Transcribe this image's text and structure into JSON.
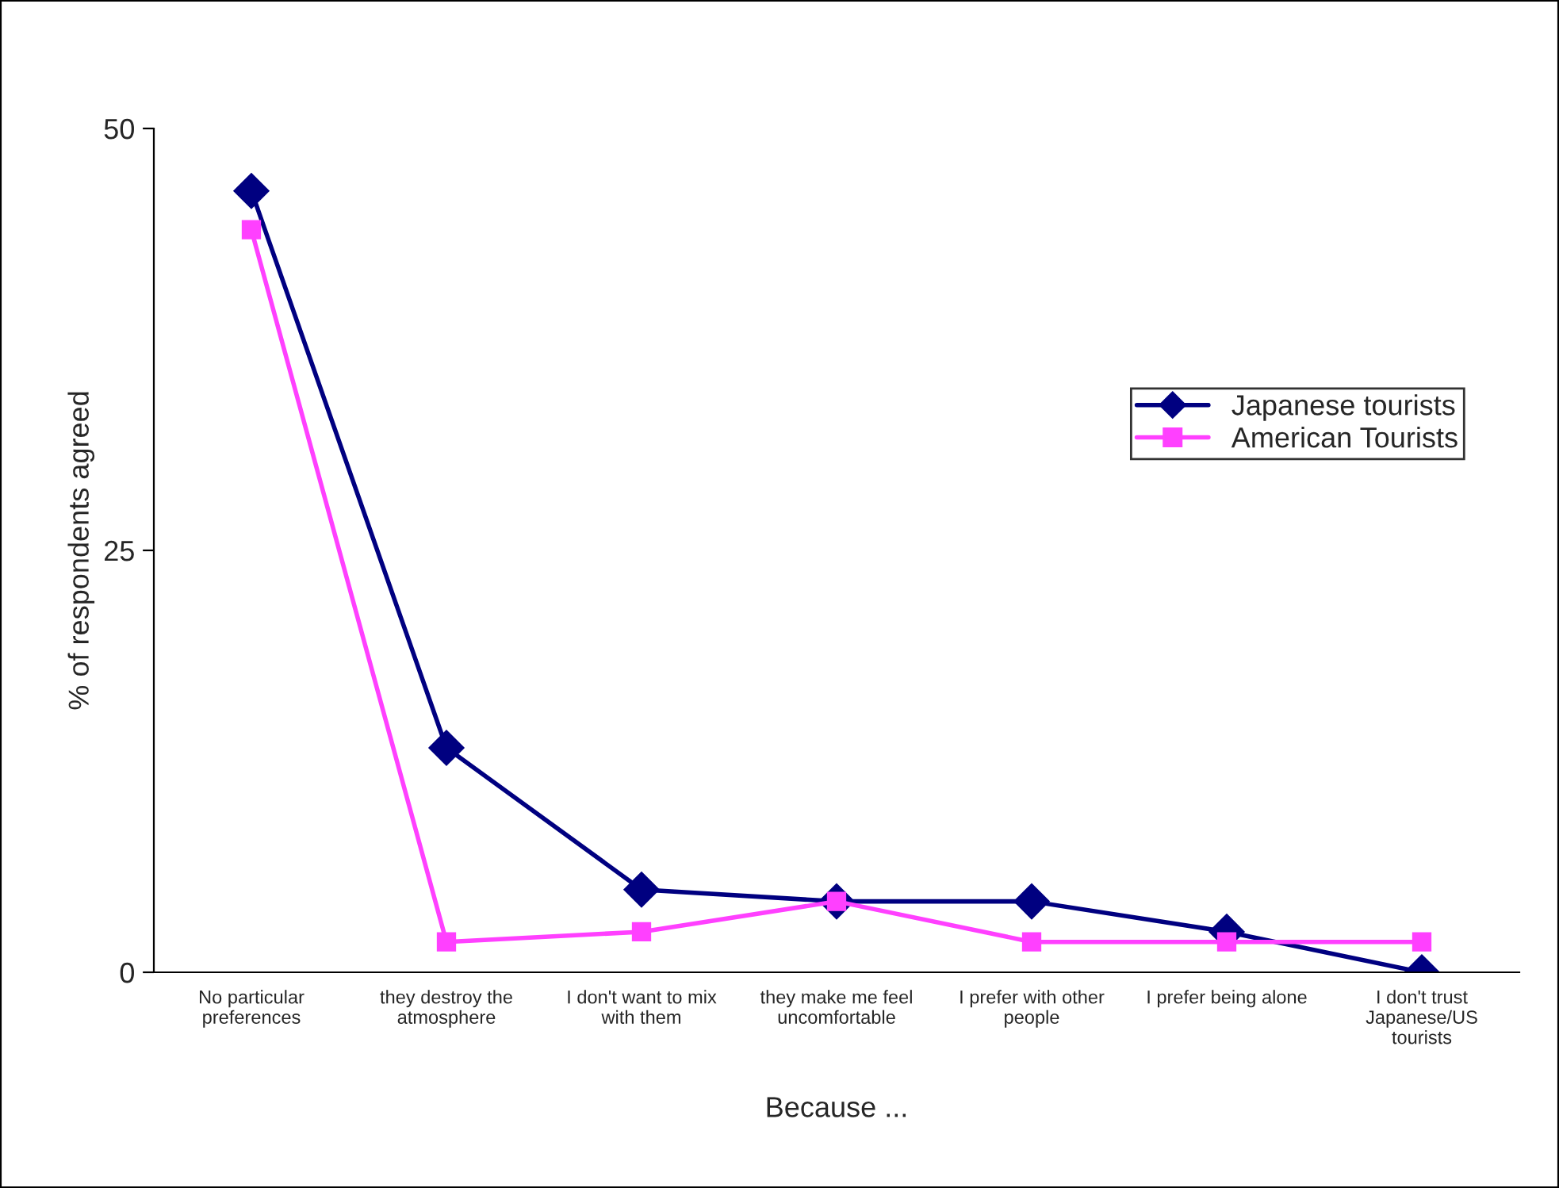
{
  "chart_data": {
    "type": "line",
    "xlabel": "Because ...",
    "ylabel": "% of respondents agreed",
    "categories": [
      "No particular\npreferences",
      "they destroy the\natmosphere",
      "I don't want to mix\nwith them",
      "they make me feel\nuncomfortable",
      "I prefer with other\npeople",
      "I prefer being alone",
      "I don't trust\nJapanese/US\ntourists"
    ],
    "series": [
      {
        "name": "Japanese tourists",
        "color": "#000080",
        "marker": "diamond",
        "values": [
          46.3,
          13.3,
          4.9,
          4.2,
          4.2,
          2.4,
          0
        ]
      },
      {
        "name": "American Tourists",
        "color": "#ff40ff",
        "marker": "square",
        "values": [
          44.0,
          1.8,
          2.4,
          4.2,
          1.8,
          1.8,
          1.8
        ]
      }
    ],
    "ylim": [
      0,
      50
    ],
    "yticks": [
      0,
      25,
      50
    ],
    "grid": false,
    "legend": "right",
    "line_style": "solid"
  }
}
